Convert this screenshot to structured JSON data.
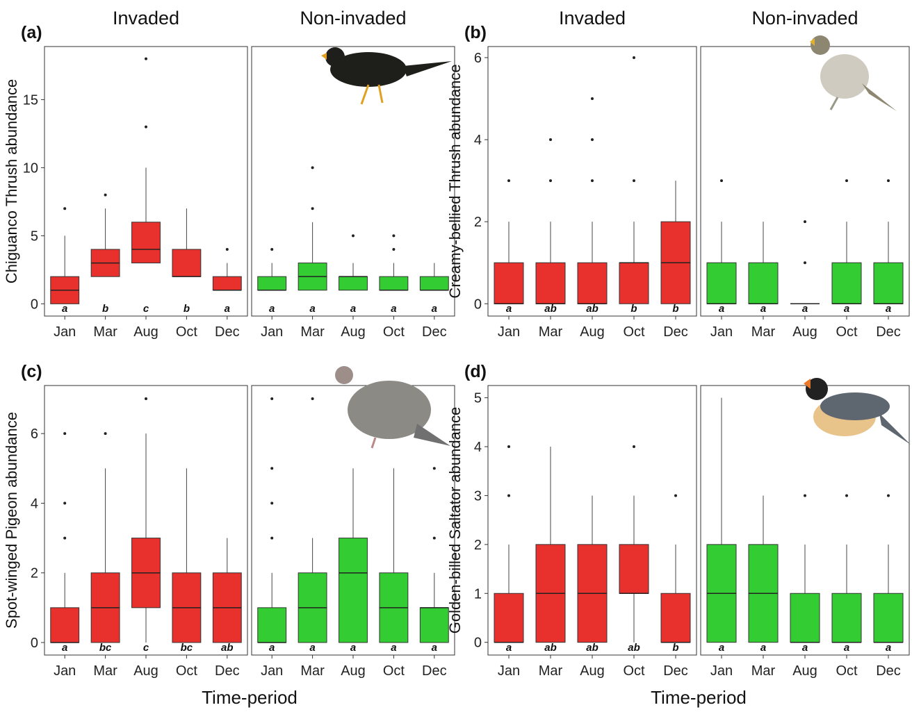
{
  "chart_data": [
    {
      "type": "box",
      "label": "(a)",
      "ylabel": "Chiguanco Thrush abundance",
      "ylim": [
        -0.9,
        18.9
      ],
      "yticks": [
        0,
        5,
        10,
        15
      ],
      "categories": [
        "Jan",
        "Mar",
        "Aug",
        "Oct",
        "Dec"
      ],
      "facets": [
        {
          "title": "Invaded",
          "color": "#e8302d",
          "boxes": [
            {
              "min": 0,
              "q1": 0,
              "median": 1,
              "q3": 2,
              "max": 5,
              "outliers": [
                7
              ],
              "letter": "a"
            },
            {
              "min": 2,
              "q1": 2,
              "median": 3,
              "q3": 4,
              "max": 7,
              "outliers": [
                8
              ],
              "letter": "b"
            },
            {
              "min": 3,
              "q1": 3,
              "median": 4,
              "q3": 6,
              "max": 10,
              "outliers": [
                13,
                18
              ],
              "letter": "c"
            },
            {
              "min": 2,
              "q1": 2,
              "median": 2,
              "q3": 4,
              "max": 7,
              "outliers": [],
              "letter": "b"
            },
            {
              "min": 1,
              "q1": 1,
              "median": 1,
              "q3": 2,
              "max": 3,
              "outliers": [
                4
              ],
              "letter": "a"
            }
          ]
        },
        {
          "title": "Non-invaded",
          "color": "#33cc33",
          "boxes": [
            {
              "min": 1,
              "q1": 1,
              "median": 1,
              "q3": 2,
              "max": 3,
              "outliers": [
                4
              ],
              "letter": "a"
            },
            {
              "min": 1,
              "q1": 1,
              "median": 2,
              "q3": 3,
              "max": 6,
              "outliers": [
                7,
                10
              ],
              "letter": "a"
            },
            {
              "min": 1,
              "q1": 1,
              "median": 2,
              "q3": 2,
              "max": 3,
              "outliers": [
                5
              ],
              "letter": "a"
            },
            {
              "min": 1,
              "q1": 1,
              "median": 1,
              "q3": 2,
              "max": 3,
              "outliers": [
                4,
                5
              ],
              "letter": "a"
            },
            {
              "min": 1,
              "q1": 1,
              "median": 1,
              "q3": 2,
              "max": 3,
              "outliers": [],
              "letter": "a"
            }
          ]
        }
      ]
    },
    {
      "type": "box",
      "label": "(b)",
      "ylabel": "Creamy-bellied Thrush abundance",
      "ylim": [
        -0.3,
        6.27
      ],
      "yticks": [
        0,
        2,
        4,
        6
      ],
      "categories": [
        "Jan",
        "Mar",
        "Aug",
        "Oct",
        "Dec"
      ],
      "facets": [
        {
          "title": "Invaded",
          "color": "#e8302d",
          "boxes": [
            {
              "min": 0,
              "q1": 0,
              "median": 0,
              "q3": 1,
              "max": 2,
              "outliers": [
                3
              ],
              "letter": "a"
            },
            {
              "min": 0,
              "q1": 0,
              "median": 0,
              "q3": 1,
              "max": 2,
              "outliers": [
                3,
                4
              ],
              "letter": "ab"
            },
            {
              "min": 0,
              "q1": 0,
              "median": 0,
              "q3": 1,
              "max": 2,
              "outliers": [
                3,
                4,
                5
              ],
              "letter": "ab"
            },
            {
              "min": 0,
              "q1": 0,
              "median": 1,
              "q3": 1,
              "max": 2,
              "outliers": [
                3,
                6
              ],
              "letter": "b"
            },
            {
              "min": 0,
              "q1": 0,
              "median": 1,
              "q3": 2,
              "max": 3,
              "outliers": [],
              "letter": "b"
            }
          ]
        },
        {
          "title": "Non-invaded",
          "color": "#33cc33",
          "boxes": [
            {
              "min": 0,
              "q1": 0,
              "median": 0,
              "q3": 1,
              "max": 2,
              "outliers": [
                3
              ],
              "letter": "a"
            },
            {
              "min": 0,
              "q1": 0,
              "median": 0,
              "q3": 1,
              "max": 2,
              "outliers": [],
              "letter": "a"
            },
            {
              "min": 0,
              "q1": 0,
              "median": 0,
              "q3": 0,
              "max": 0,
              "outliers": [
                1,
                2
              ],
              "letter": "a"
            },
            {
              "min": 0,
              "q1": 0,
              "median": 0,
              "q3": 1,
              "max": 2,
              "outliers": [
                3
              ],
              "letter": "a"
            },
            {
              "min": 0,
              "q1": 0,
              "median": 0,
              "q3": 1,
              "max": 2,
              "outliers": [
                3
              ],
              "letter": "a"
            }
          ]
        }
      ]
    },
    {
      "type": "box",
      "label": "(c)",
      "ylabel": "Spot-winged Pigeon abundance",
      "xlabel": "Time-period",
      "ylim": [
        -0.36,
        7.38
      ],
      "yticks": [
        0,
        2,
        4,
        6
      ],
      "categories": [
        "Jan",
        "Mar",
        "Aug",
        "Oct",
        "Dec"
      ],
      "facets": [
        {
          "color": "#e8302d",
          "boxes": [
            {
              "min": 0,
              "q1": 0,
              "median": 0,
              "q3": 1,
              "max": 2,
              "outliers": [
                3,
                4,
                6
              ],
              "letter": "a"
            },
            {
              "min": 0,
              "q1": 0,
              "median": 1,
              "q3": 2,
              "max": 5,
              "outliers": [
                6
              ],
              "letter": "bc"
            },
            {
              "min": 0,
              "q1": 1,
              "median": 2,
              "q3": 3,
              "max": 6,
              "outliers": [
                7
              ],
              "letter": "c"
            },
            {
              "min": 0,
              "q1": 0,
              "median": 1,
              "q3": 2,
              "max": 5,
              "outliers": [],
              "letter": "bc"
            },
            {
              "min": 0,
              "q1": 0,
              "median": 1,
              "q3": 2,
              "max": 3,
              "outliers": [],
              "letter": "ab"
            }
          ]
        },
        {
          "color": "#33cc33",
          "boxes": [
            {
              "min": 0,
              "q1": 0,
              "median": 0,
              "q3": 1,
              "max": 2,
              "outliers": [
                3,
                4,
                5,
                7
              ],
              "letter": "a"
            },
            {
              "min": 0,
              "q1": 0,
              "median": 1,
              "q3": 2,
              "max": 3,
              "outliers": [
                7
              ],
              "letter": "a"
            },
            {
              "min": 0,
              "q1": 0,
              "median": 2,
              "q3": 3,
              "max": 5,
              "outliers": [],
              "letter": "a"
            },
            {
              "min": 0,
              "q1": 0,
              "median": 1,
              "q3": 2,
              "max": 5,
              "outliers": [],
              "letter": "a"
            },
            {
              "min": 0,
              "q1": 0,
              "median": 1,
              "q3": 1,
              "max": 2,
              "outliers": [
                3,
                5
              ],
              "letter": "a"
            }
          ]
        }
      ]
    },
    {
      "type": "box",
      "label": "(d)",
      "ylabel": "Golden-billed Saltator abundance",
      "xlabel": "Time-period",
      "ylim": [
        -0.26,
        5.25
      ],
      "yticks": [
        0,
        1,
        2,
        3,
        4,
        5
      ],
      "categories": [
        "Jan",
        "Mar",
        "Aug",
        "Oct",
        "Dec"
      ],
      "facets": [
        {
          "color": "#e8302d",
          "boxes": [
            {
              "min": 0,
              "q1": 0,
              "median": 0,
              "q3": 1,
              "max": 2,
              "outliers": [
                3,
                4
              ],
              "letter": "a"
            },
            {
              "min": 0,
              "q1": 0,
              "median": 1,
              "q3": 2,
              "max": 4,
              "outliers": [],
              "letter": "ab"
            },
            {
              "min": 0,
              "q1": 0,
              "median": 1,
              "q3": 2,
              "max": 3,
              "outliers": [],
              "letter": "ab"
            },
            {
              "min": 0,
              "q1": 1,
              "median": 1,
              "q3": 2,
              "max": 3,
              "outliers": [
                4
              ],
              "letter": "ab"
            },
            {
              "min": 0,
              "q1": 0,
              "median": 0,
              "q3": 1,
              "max": 2,
              "outliers": [
                3
              ],
              "letter": "b"
            }
          ]
        },
        {
          "color": "#33cc33",
          "boxes": [
            {
              "min": 0,
              "q1": 0,
              "median": 1,
              "q3": 2,
              "max": 5,
              "outliers": [],
              "letter": "a"
            },
            {
              "min": 0,
              "q1": 0,
              "median": 1,
              "q3": 2,
              "max": 3,
              "outliers": [],
              "letter": "a"
            },
            {
              "min": 0,
              "q1": 0,
              "median": 0,
              "q3": 1,
              "max": 2,
              "outliers": [
                3
              ],
              "letter": "a"
            },
            {
              "min": 0,
              "q1": 0,
              "median": 0,
              "q3": 1,
              "max": 2,
              "outliers": [
                3
              ],
              "letter": "a"
            },
            {
              "min": 0,
              "q1": 0,
              "median": 0,
              "q3": 1,
              "max": 2,
              "outliers": [
                3
              ],
              "letter": "a"
            }
          ]
        }
      ]
    }
  ]
}
